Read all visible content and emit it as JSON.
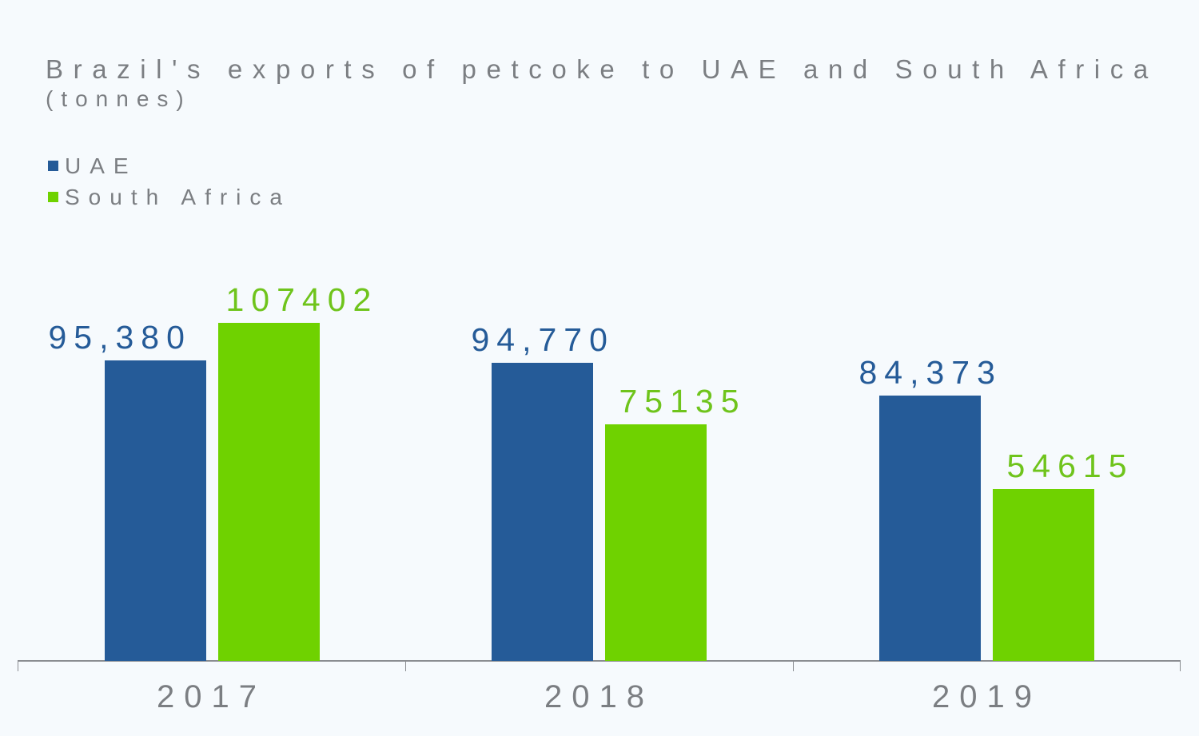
{
  "title": "Brazil's exports of petcoke to UAE and South Africa",
  "subtitle": "(tonnes)",
  "legend": [
    {
      "label": "UAE",
      "color": "#255b98"
    },
    {
      "label": "South Africa",
      "color": "#6fd200"
    }
  ],
  "categories": [
    "2017",
    "2018",
    "2019"
  ],
  "labels": {
    "uae": [
      "95,380",
      "94,770",
      "84,373"
    ],
    "south_africa": [
      "107402",
      "75135",
      "54615"
    ]
  },
  "chart_data": {
    "type": "bar",
    "title": "Brazil's exports of petcoke to UAE and South Africa (tonnes)",
    "xlabel": "",
    "ylabel": "tonnes",
    "categories": [
      "2017",
      "2018",
      "2019"
    ],
    "series": [
      {
        "name": "UAE",
        "color": "#255b98",
        "values": [
          95380,
          94770,
          84373
        ]
      },
      {
        "name": "South Africa",
        "color": "#6fd200",
        "values": [
          107402,
          75135,
          54615
        ]
      }
    ],
    "ylim": [
      0,
      107402
    ],
    "grid": false,
    "legend_position": "top-left",
    "data_labels": true
  }
}
